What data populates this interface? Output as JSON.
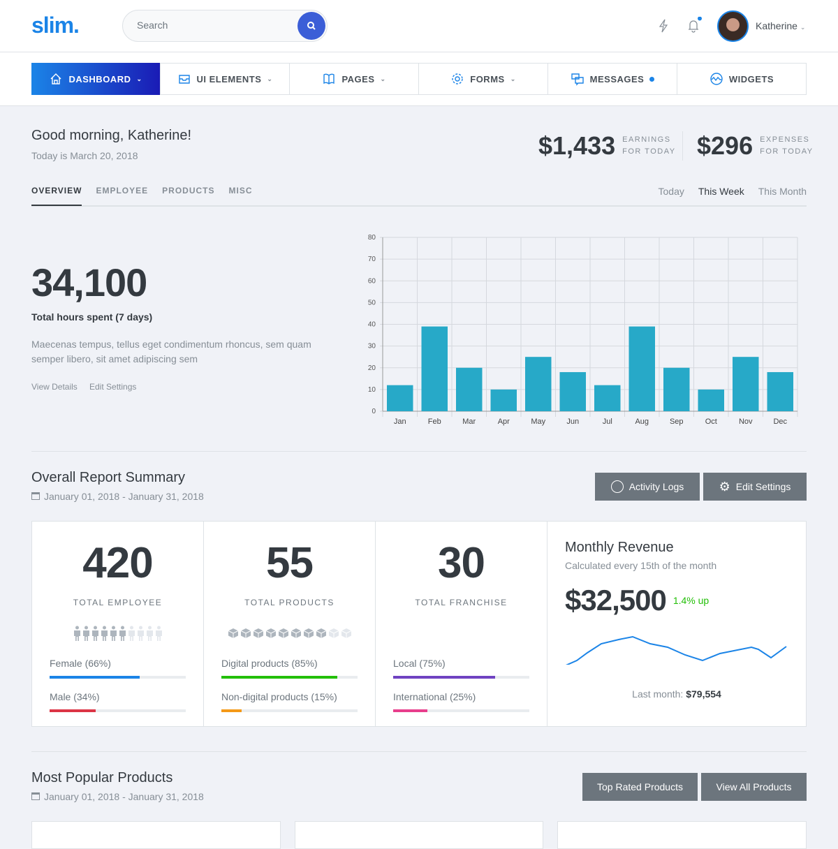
{
  "header": {
    "logo": "slim.",
    "search_placeholder": "Search",
    "user_name": "Katherine"
  },
  "nav": [
    {
      "label": "DASHBOARD",
      "icon": "home-icon"
    },
    {
      "label": "UI ELEMENTS",
      "icon": "inbox-icon"
    },
    {
      "label": "PAGES",
      "icon": "book-icon"
    },
    {
      "label": "FORMS",
      "icon": "gear-icon"
    },
    {
      "label": "MESSAGES",
      "icon": "chat-icon"
    },
    {
      "label": "WIDGETS",
      "icon": "pulse-icon"
    }
  ],
  "greeting": {
    "title": "Good morning, Katherine!",
    "date": "Today is March 20, 2018"
  },
  "earnings": {
    "value": "$1,433",
    "label1": "EARNINGS",
    "label2": "FOR TODAY"
  },
  "expenses": {
    "value": "$296",
    "label1": "EXPENSES",
    "label2": "FOR TODAY"
  },
  "tabs": [
    "OVERVIEW",
    "EMPLOYEE",
    "PRODUCTS",
    "MISC"
  ],
  "periods": [
    "Today",
    "This Week",
    "This Month"
  ],
  "overview": {
    "big": "34,100",
    "label": "Total hours spent (7 days)",
    "desc": "Maecenas tempus, tellus eget condimentum rhoncus, sem quam semper libero, sit amet adipiscing sem",
    "link1": "View Details",
    "link2": "Edit Settings"
  },
  "chart_data": {
    "type": "bar",
    "categories": [
      "Jan",
      "Feb",
      "Mar",
      "Apr",
      "May",
      "Jun",
      "Jul",
      "Aug",
      "Sep",
      "Oct",
      "Nov",
      "Dec"
    ],
    "values": [
      12,
      39,
      20,
      10,
      25,
      18,
      12,
      39,
      20,
      10,
      25,
      18
    ],
    "ylim": [
      0,
      80
    ],
    "yticks": [
      0,
      10,
      20,
      30,
      40,
      50,
      60,
      70,
      80
    ],
    "grid": true,
    "color": "#27a9c8"
  },
  "report": {
    "title": "Overall Report Summary",
    "range": "January 01, 2018 - January 31, 2018",
    "btn1": "Activity Logs",
    "btn2": "Edit Settings"
  },
  "stats": [
    {
      "value": "420",
      "label": "TOTAL EMPLOYEE",
      "icon": "person-icon",
      "filled": 6,
      "total": 10,
      "bars": [
        {
          "label": "Female (66%)",
          "pct": 66,
          "color": "#1b84e7"
        },
        {
          "label": "Male (34%)",
          "pct": 34,
          "color": "#dc3545"
        }
      ]
    },
    {
      "value": "55",
      "label": "TOTAL PRODUCTS",
      "icon": "cube-icon",
      "filled": 8,
      "total": 10,
      "bars": [
        {
          "label": "Digital products (85%)",
          "pct": 85,
          "color": "#23bf08"
        },
        {
          "label": "Non-digital products (15%)",
          "pct": 15,
          "color": "#f49917"
        }
      ]
    },
    {
      "value": "30",
      "label": "TOTAL FRANCHISE",
      "icon": "pin-icon",
      "filled": 7,
      "total": 10,
      "bars": [
        {
          "label": "Local (75%)",
          "pct": 75,
          "color": "#6f42c1"
        },
        {
          "label": "International (25%)",
          "pct": 25,
          "color": "#e83e8c"
        }
      ]
    }
  ],
  "revenue": {
    "title": "Monthly Revenue",
    "sub": "Calculated every 15th of the month",
    "value": "$32,500",
    "change": "1.4% up",
    "last_label": "Last month:",
    "last_value": "$79,554"
  },
  "popular": {
    "title": "Most Popular Products",
    "range": "January 01, 2018 - January 31, 2018",
    "btn1": "Top Rated Products",
    "btn2": "View All Products"
  }
}
